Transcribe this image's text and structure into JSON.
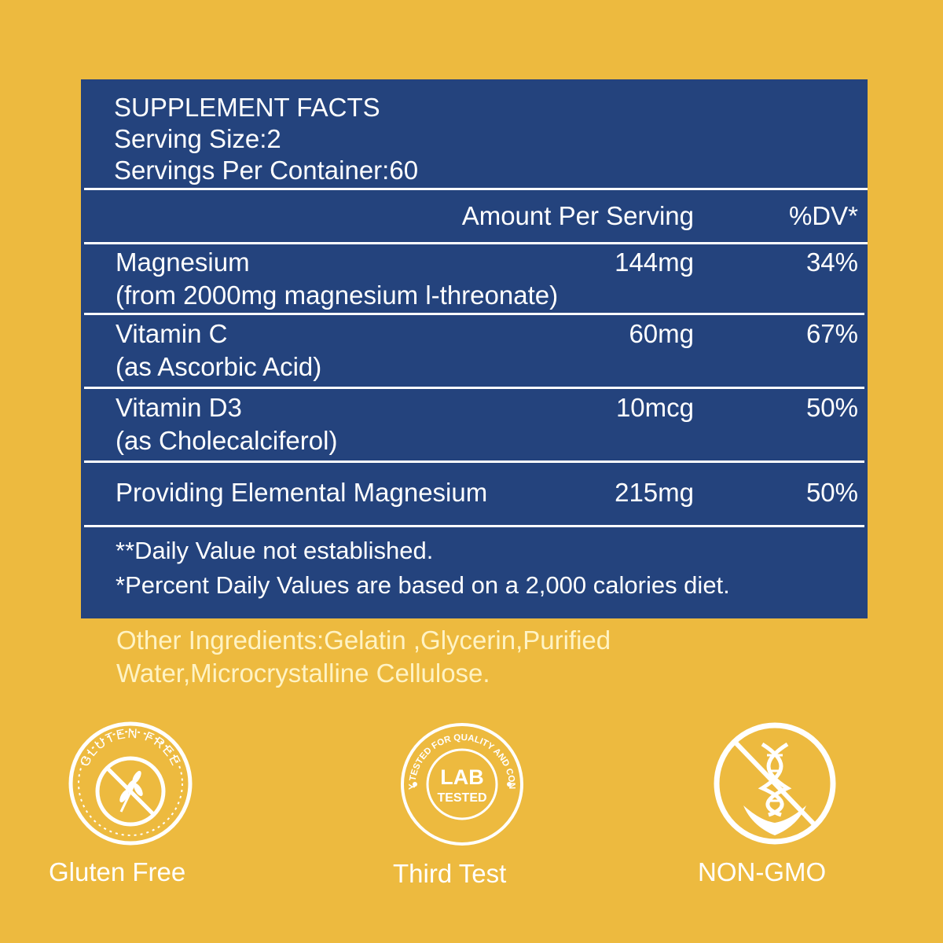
{
  "facts": {
    "title": "SUPPLEMENT FACTS",
    "serving_size": "Serving Size:2",
    "servings_per_container": "Servings Per Container:60",
    "col_amount": "Amount Per Serving",
    "col_dv": "%DV*",
    "rows": [
      {
        "name": "Magnesium",
        "source": "(from 2000mg magnesium l-threonate)",
        "amount": "144mg",
        "dv": "34%"
      },
      {
        "name": "Vitamin C",
        "source": "(as Ascorbic Acid)",
        "amount": "60mg",
        "dv": "67%"
      },
      {
        "name": "Vitamin D3",
        "source": "(as Cholecalciferol)",
        "amount": "10mcg",
        "dv": "50%"
      },
      {
        "name": "Providing Elemental Magnesium",
        "source": "",
        "amount": "215mg",
        "dv": "50%"
      }
    ],
    "footnote_1": "**Daily Value not established.",
    "footnote_2": "*Percent Daily Values are based on a 2,000 calories diet."
  },
  "other_ingredients": {
    "line_1": "Other Ingredients:Gelatin ,Glycerin,Purified",
    "line_2": "Water,Microcrystalline Cellulose."
  },
  "badges": [
    {
      "icon": "gluten-free-icon",
      "ring_text": "GLUTEN FREE",
      "label": "Gluten Free"
    },
    {
      "icon": "lab-tested-icon",
      "ring_text": "3RD PARTY TESTED FOR QUALITY AND CONSISTENCY",
      "center_top": "LAB",
      "center_bottom": "TESTED",
      "label": "Third Test"
    },
    {
      "icon": "non-gmo-icon",
      "label": "NON-GMO"
    }
  ],
  "colors": {
    "background": "#EDBA3F",
    "panel": "#24437D",
    "ingredients_text": "#FFF3C4",
    "badge": "#FFFFFF"
  }
}
